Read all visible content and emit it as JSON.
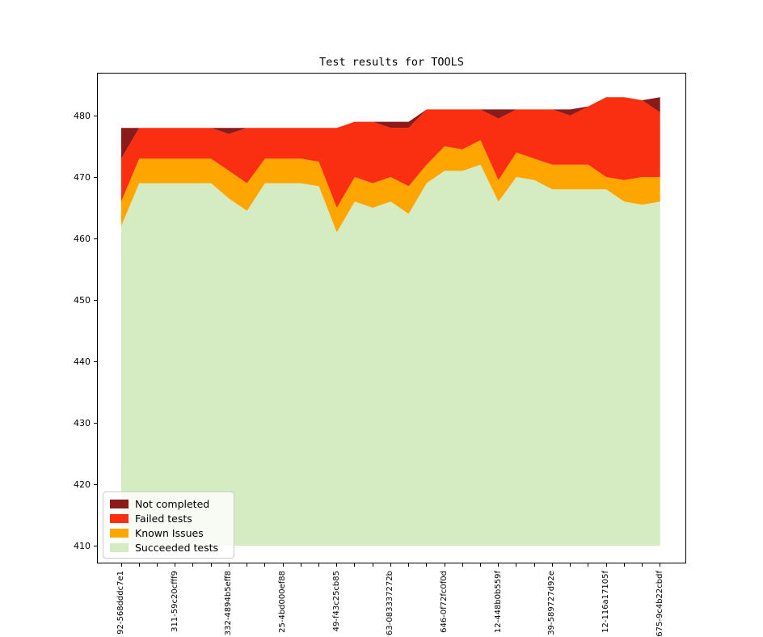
{
  "title": "Test results for TOOLS",
  "legend": {
    "position": "lower left",
    "items": [
      {
        "label": "Not completed",
        "color": "#8b1a1a"
      },
      {
        "label": "Failed tests",
        "color": "#fa2e10"
      },
      {
        "label": "Known Issues",
        "color": "#ffa500"
      },
      {
        "label": "Succeeded tests",
        "color": "#d5ecc2"
      }
    ]
  },
  "chart_data": {
    "type": "area",
    "stacked": true,
    "title": "Test results for TOOLS",
    "xlabel": "",
    "ylabel": "",
    "grid": false,
    "ylim": [
      407,
      487
    ],
    "yticks": [
      480,
      470,
      460,
      450,
      440,
      430,
      420,
      410
    ],
    "baseline": 410,
    "x_count": 31,
    "x_labeled_indices": [
      0,
      3,
      6,
      9,
      12,
      15,
      18,
      21,
      24,
      27,
      30
    ],
    "x_labels": [
      "92-568dddc7e1",
      "311-59c20cfff9",
      "332-4894b5eff8",
      "25-4bd000ef88",
      "49-f43c25cb85",
      "63-083337272b",
      "646-0f72fc0f0d",
      "12-448b0b559f",
      "39-589727d92e",
      "12-116a17105f",
      "675-9c4b22cbdf"
    ],
    "boundaries": {
      "base": 410,
      "succeeded_top": [
        462,
        469,
        469,
        469,
        469,
        469,
        466.5,
        464.5,
        469,
        469,
        469,
        468.5,
        461,
        466,
        465,
        466,
        464,
        469,
        471,
        471,
        472,
        466,
        470,
        469.5,
        468,
        468,
        468,
        468,
        466,
        465.5,
        466
      ],
      "known_top": [
        466,
        473,
        473,
        473,
        473,
        473,
        471,
        469,
        473,
        473,
        473,
        472.5,
        465,
        470,
        469,
        470,
        468.5,
        472,
        475,
        474.5,
        476,
        469.5,
        474,
        473,
        472,
        472,
        472,
        470,
        469.5,
        470,
        470
      ],
      "failed_top": [
        473,
        478,
        478,
        478,
        478,
        478,
        477,
        478,
        478,
        478,
        478,
        478,
        478,
        479,
        479,
        478,
        478,
        481,
        481,
        481,
        481,
        479.5,
        481,
        481,
        481,
        480,
        481.5,
        483,
        483,
        482.5,
        480.5
      ],
      "total_top": [
        478,
        478,
        478,
        478,
        478,
        478,
        478,
        478,
        478,
        478,
        478,
        478,
        478,
        479,
        479,
        479,
        479,
        481,
        481,
        481,
        481,
        481,
        481,
        481,
        481,
        481,
        481.5,
        483,
        483,
        482.5,
        483
      ]
    },
    "series": [
      {
        "name": "Succeeded tests",
        "upper": "succeeded_top",
        "lower": "base",
        "color": "#d5ecc2"
      },
      {
        "name": "Known Issues",
        "upper": "known_top",
        "lower": "succeeded_top",
        "color": "#ffa500"
      },
      {
        "name": "Failed tests",
        "upper": "failed_top",
        "lower": "known_top",
        "color": "#fa2e10"
      },
      {
        "name": "Not completed",
        "upper": "total_top",
        "lower": "failed_top",
        "color": "#8b1a1a"
      }
    ]
  }
}
